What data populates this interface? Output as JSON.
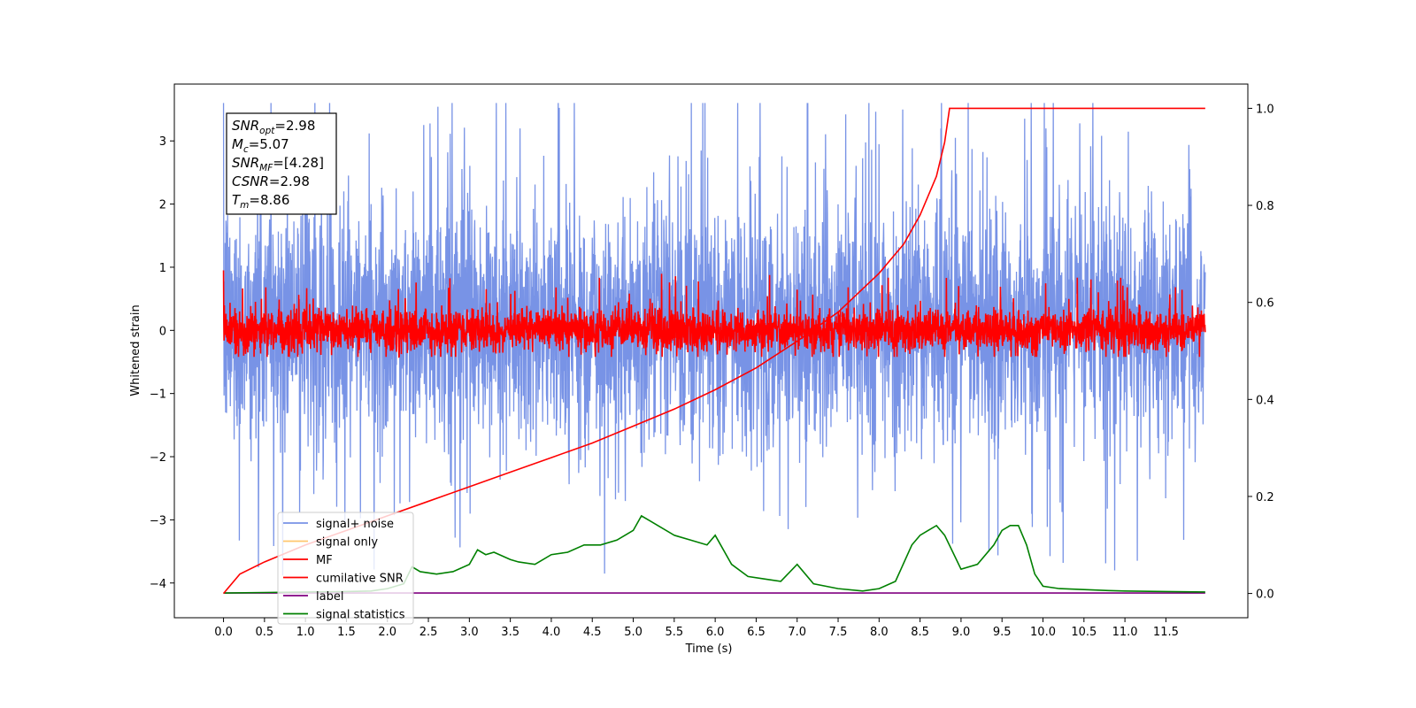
{
  "chart_data": {
    "type": "line",
    "xlabel": "Time (s)",
    "ylabel": "Whitened strain",
    "xlim": [
      -0.6,
      12.5
    ],
    "ylim": [
      -4.55,
      3.9
    ],
    "ylim_right": [
      -0.05,
      1.05
    ],
    "x_ticks": [
      "0.0",
      "0.5",
      "1.0",
      "1.5",
      "2.0",
      "2.5",
      "3.0",
      "3.5",
      "4.0",
      "4.5",
      "5.0",
      "5.5",
      "6.0",
      "6.5",
      "7.0",
      "7.5",
      "8.0",
      "8.5",
      "9.0",
      "9.5",
      "10.0",
      "10.5",
      "11.0",
      "11.5"
    ],
    "y_ticks_left": [
      "3",
      "2",
      "1",
      "0",
      "−1",
      "−2",
      "−3",
      "−4"
    ],
    "y_ticks_right": [
      "1.0",
      "0.8",
      "0.6",
      "0.4",
      "0.2",
      "0.0"
    ],
    "legend_placement": "lower-left",
    "grid": false,
    "series": [
      {
        "name": "signal+ noise",
        "axis": "left",
        "color": "#7893e6",
        "x_range": [
          0.0,
          11.98
        ],
        "center": 0.1,
        "std_envelope": 1.0,
        "max": 3.6,
        "min": -4.1
      },
      {
        "name": "signal only",
        "axis": "left",
        "color": "#ffc66e",
        "x_range": [
          0.0,
          11.98
        ],
        "values_note_free": true
      },
      {
        "name": "MF",
        "axis": "left",
        "color": "#ff0000",
        "x_range": [
          0.0,
          11.98
        ],
        "center": 0.0,
        "band": [
          -0.4,
          0.4
        ],
        "max": 0.95,
        "min": -0.42
      },
      {
        "name": "cumilative SNR",
        "axis": "right",
        "color": "#ff0000",
        "x": [
          0.0,
          0.2,
          0.5,
          1.0,
          1.5,
          2.0,
          2.5,
          3.0,
          3.5,
          4.0,
          4.5,
          5.0,
          5.5,
          6.0,
          6.5,
          7.0,
          7.5,
          8.0,
          8.3,
          8.5,
          8.7,
          8.8,
          8.86,
          11.98
        ],
        "y": [
          0.0,
          0.04,
          0.065,
          0.1,
          0.13,
          0.16,
          0.19,
          0.22,
          0.25,
          0.28,
          0.31,
          0.345,
          0.38,
          0.42,
          0.465,
          0.52,
          0.58,
          0.66,
          0.72,
          0.78,
          0.86,
          0.93,
          1.0,
          1.0
        ]
      },
      {
        "name": "label",
        "axis": "right",
        "color": "#800080",
        "x": [
          0.0,
          11.98
        ],
        "y": [
          0.001,
          0.001
        ]
      },
      {
        "name": "signal statistics",
        "axis": "right",
        "color": "#008000",
        "x": [
          0.0,
          0.5,
          1.0,
          1.5,
          1.8,
          2.0,
          2.2,
          2.3,
          2.4,
          2.6,
          2.8,
          3.0,
          3.1,
          3.2,
          3.3,
          3.5,
          3.6,
          3.8,
          4.0,
          4.2,
          4.4,
          4.6,
          4.8,
          4.9,
          5.0,
          5.1,
          5.2,
          5.3,
          5.5,
          5.7,
          5.9,
          6.0,
          6.2,
          6.4,
          6.6,
          6.8,
          7.0,
          7.2,
          7.5,
          7.8,
          8.0,
          8.2,
          8.4,
          8.5,
          8.6,
          8.7,
          8.8,
          9.0,
          9.2,
          9.4,
          9.5,
          9.6,
          9.7,
          9.8,
          9.9,
          10.0,
          10.2,
          10.5,
          10.8,
          11.0,
          11.5,
          11.98
        ],
        "y": [
          0.001,
          0.002,
          0.003,
          0.004,
          0.005,
          0.01,
          0.02,
          0.055,
          0.045,
          0.04,
          0.045,
          0.06,
          0.09,
          0.08,
          0.085,
          0.07,
          0.065,
          0.06,
          0.08,
          0.085,
          0.1,
          0.1,
          0.11,
          0.12,
          0.13,
          0.16,
          0.15,
          0.14,
          0.12,
          0.11,
          0.1,
          0.12,
          0.06,
          0.035,
          0.03,
          0.025,
          0.06,
          0.02,
          0.01,
          0.005,
          0.01,
          0.025,
          0.1,
          0.12,
          0.13,
          0.14,
          0.12,
          0.05,
          0.06,
          0.1,
          0.13,
          0.14,
          0.14,
          0.1,
          0.04,
          0.015,
          0.01,
          0.008,
          0.006,
          0.005,
          0.004,
          0.003
        ]
      }
    ],
    "annotation": [
      {
        "var": "SNR",
        "sub": "opt",
        "value": "=2.98"
      },
      {
        "var": "M",
        "sub": "c",
        "value": "=5.07"
      },
      {
        "var": "SNR",
        "sub": "MF",
        "value": "=[4.28]"
      },
      {
        "var": "CSNR",
        "sub": "",
        "value": "=2.98"
      },
      {
        "var": "T",
        "sub": "m",
        "value": "=8.86"
      }
    ]
  }
}
